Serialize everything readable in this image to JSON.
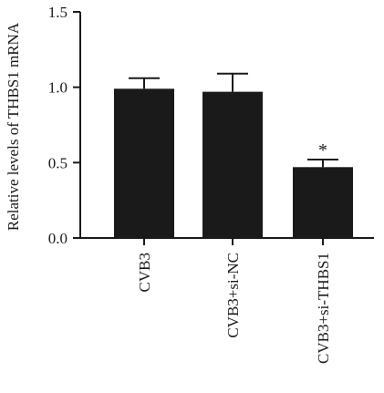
{
  "chart_data": {
    "type": "bar",
    "title": "",
    "xlabel": "",
    "ylabel": "Relative levels of THBS1 mRNA",
    "ylim": [
      0,
      1.5
    ],
    "yticks": [
      "0.0",
      "0.5",
      "1.0",
      "1.5"
    ],
    "categories": [
      "CVB3",
      "CVB3+si-NC",
      "CVB3+si-THBS1"
    ],
    "values": [
      0.99,
      0.97,
      0.47
    ],
    "errors": [
      0.07,
      0.12,
      0.05
    ],
    "annotations": [
      "",
      "",
      "*"
    ],
    "bar_color": "#1a1a1a",
    "grid": false
  }
}
